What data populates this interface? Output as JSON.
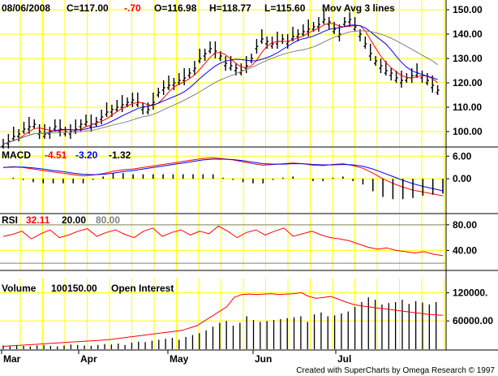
{
  "chart_data": [
    {
      "type": "bar",
      "subtype": "ohlc",
      "header": {
        "date": "08/06/2008",
        "close_label": "C=117.00",
        "change_label": "-.70",
        "open_label": "O=116.98",
        "high_label": "H=118.77",
        "low_label": "L=115.60",
        "study_label": "Mov Avg 3 lines"
      },
      "ylim": [
        94,
        154
      ],
      "yticks": [
        100,
        110,
        120,
        130,
        140,
        150
      ],
      "ytick_labels": [
        "100.00",
        "110.00",
        "120.00",
        "130.00",
        "140.00",
        "150.00"
      ],
      "close_series": [
        95,
        96,
        98,
        99,
        101,
        102,
        103,
        100,
        99,
        100,
        102,
        101,
        100,
        100,
        101,
        103,
        104,
        103,
        104,
        106,
        108,
        109,
        110,
        111,
        112,
        113,
        112,
        110,
        109,
        112,
        116,
        118,
        119,
        120,
        121,
        122,
        124,
        126,
        130,
        132,
        134,
        133,
        131,
        128,
        127,
        126,
        125,
        127,
        130,
        135,
        138,
        137,
        136,
        137,
        138,
        137,
        139,
        140,
        141,
        142,
        143,
        144,
        146,
        145,
        142,
        140,
        145,
        146,
        143,
        140,
        136,
        132,
        129,
        127,
        125,
        124,
        122,
        121,
        122,
        123,
        124,
        123,
        121,
        119,
        117
      ],
      "ma_colors": [
        "#ff0000",
        "#0000ff",
        "#808080"
      ]
    },
    {
      "type": "line",
      "indicator": "MACD",
      "labels": {
        "name": "MACD",
        "v1": "-4.51",
        "v2": "-3.20",
        "v3": "-1.32"
      },
      "colors": {
        "v1": "#ff0000",
        "v2": "#0000ff",
        "v3": "#000000"
      },
      "ylim": [
        -9,
        8
      ],
      "yticks": [
        6,
        0
      ],
      "ytick_labels": [
        "6.00",
        "0.00"
      ],
      "series": [
        {
          "values": [
            3,
            3.2,
            3,
            2.6,
            2.2,
            1.8,
            1.5,
            1.1,
            0.8,
            1,
            1.4,
            2,
            2.4,
            2.6,
            3,
            3.4,
            3.8,
            4.2,
            4.6,
            5,
            5.4,
            5.6,
            5.3,
            5,
            4.5,
            4,
            3.6,
            3.8,
            4,
            4.2,
            4,
            3.6,
            3.5,
            3.8,
            4,
            3.5,
            2.8,
            1.5,
            0,
            -1.2,
            -2.2,
            -3,
            -3.5,
            -4,
            -4.51
          ]
        },
        {
          "values": [
            3,
            3.1,
            3.1,
            2.9,
            2.6,
            2.2,
            1.9,
            1.5,
            1.2,
            1.1,
            1.2,
            1.5,
            1.9,
            2.2,
            2.6,
            3,
            3.4,
            3.8,
            4.2,
            4.6,
            5,
            5.2,
            5.2,
            5.1,
            4.8,
            4.4,
            4,
            3.9,
            3.9,
            4,
            4,
            3.8,
            3.7,
            3.7,
            3.8,
            3.7,
            3.3,
            2.6,
            1.6,
            0.6,
            -0.4,
            -1.3,
            -2,
            -2.6,
            -3.2
          ]
        }
      ]
    },
    {
      "type": "line",
      "indicator": "RSI",
      "labels": {
        "name": "RSI",
        "v1": "32.11",
        "v2": "20.00",
        "v3": "80.00"
      },
      "colors": {
        "v1": "#ff0000",
        "v2": "#000000",
        "v3": "#808080"
      },
      "ylim": [
        10,
        95
      ],
      "yticks": [
        80,
        40
      ],
      "ytick_labels": [
        "80.00",
        "40.00"
      ],
      "series": [
        {
          "values": [
            62,
            65,
            70,
            58,
            66,
            72,
            60,
            64,
            70,
            74,
            62,
            68,
            72,
            65,
            60,
            70,
            75,
            62,
            68,
            72,
            64,
            70,
            66,
            78,
            70,
            60,
            68,
            72,
            64,
            70,
            75,
            62,
            66,
            70,
            64,
            60,
            58,
            55,
            50,
            45,
            42,
            44,
            40,
            38,
            36,
            38,
            34,
            32
          ]
        }
      ]
    },
    {
      "type": "bar",
      "indicator": "Volume",
      "labels": {
        "name": "Volume",
        "value": "100150.00",
        "study": "Open Interest"
      },
      "ylim": [
        0,
        150000
      ],
      "yticks": [
        120000,
        60000
      ],
      "ytick_labels": [
        "120000.",
        "60000.00"
      ],
      "values": [
        8000,
        6000,
        9000,
        7000,
        6000,
        8000,
        9000,
        7000,
        6000,
        8000,
        10000,
        9000,
        8000,
        7000,
        9000,
        11000,
        10000,
        12000,
        9000,
        14000,
        16000,
        15000,
        18000,
        20000,
        22000,
        24000,
        20000,
        26000,
        30000,
        34000,
        40000,
        48000,
        56000,
        60000,
        50000,
        56000,
        70000,
        62000,
        58000,
        60000,
        62000,
        64000,
        66000,
        68000,
        70000,
        58000,
        74000,
        78000,
        70000,
        72000,
        76000,
        80000,
        90000,
        100000,
        110000,
        105000,
        95000,
        98000,
        100000,
        105000,
        96000,
        102000,
        99000,
        95000,
        100150
      ],
      "open_interest": [
        6000,
        7000,
        8000,
        9000,
        10000,
        11000,
        12000,
        13000,
        14000,
        15000,
        16000,
        17000,
        18000,
        19000,
        20000,
        22000,
        24000,
        26000,
        28000,
        30000,
        32000,
        34000,
        36000,
        38000,
        40000,
        45000,
        50000,
        60000,
        70000,
        80000,
        90000,
        110000,
        116000,
        117000,
        116000,
        117000,
        118000,
        116000,
        117000,
        118000,
        120000,
        112000,
        108000,
        110000,
        112000,
        106000,
        100000,
        95000,
        92000,
        90000,
        88000,
        86000,
        84000,
        82000,
        80000,
        78000,
        76000,
        74000,
        73000,
        72000
      ]
    }
  ],
  "x_axis": {
    "months": [
      "Mar",
      "Apr",
      "May",
      "Jun",
      "Jul"
    ]
  },
  "footer": "Created with SuperCharts by Omega Research © 1997"
}
